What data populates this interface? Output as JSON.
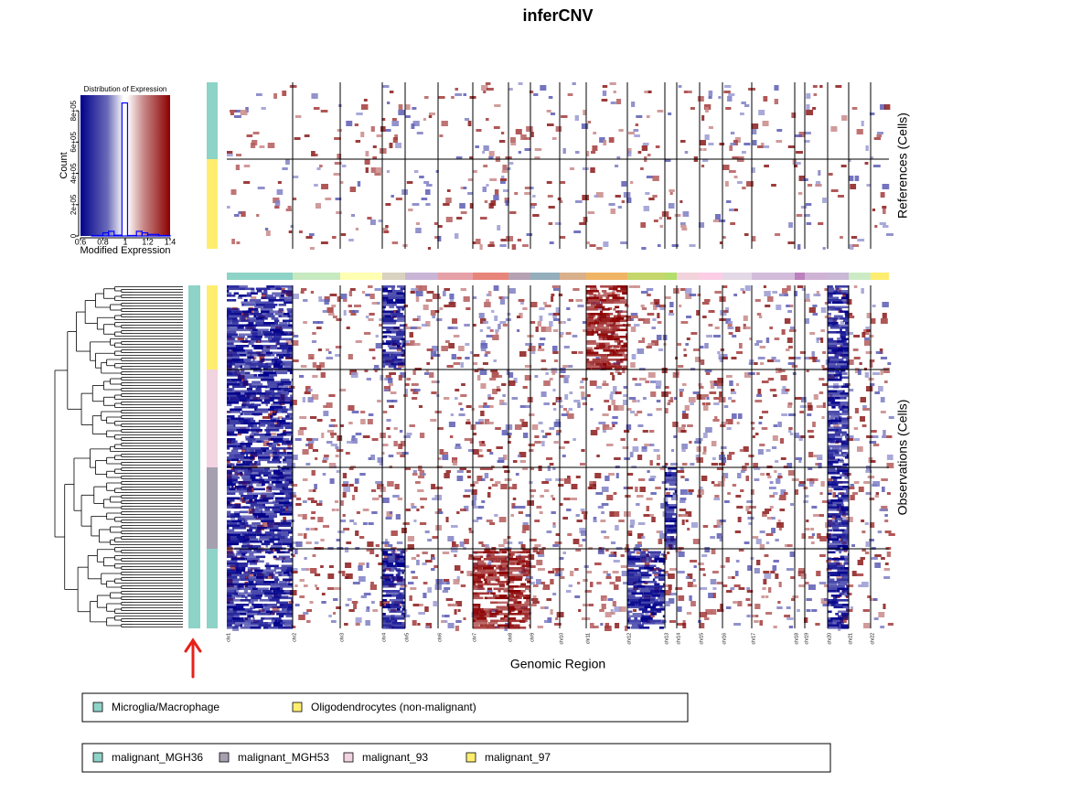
{
  "chart_data": {
    "type": "heatmap",
    "title": "inferCNV",
    "x_label": "Genomic Region",
    "references_label": "References (Cells)",
    "observations_label": "Observations (Cells)",
    "chromosomes": [
      {
        "name": "chr1",
        "color": "#8dd3c7"
      },
      {
        "name": "chr2",
        "color": "#c7e9c0"
      },
      {
        "name": "chr3",
        "color": "#ffffb3"
      },
      {
        "name": "chr4",
        "color": "#d9d2c0"
      },
      {
        "name": "chr5",
        "color": "#c9b5d6"
      },
      {
        "name": "chr6",
        "color": "#e6a0a8"
      },
      {
        "name": "chr7",
        "color": "#e8857a"
      },
      {
        "name": "chr8",
        "color": "#b6a1b3"
      },
      {
        "name": "chr9",
        "color": "#94aebc"
      },
      {
        "name": "chr10",
        "color": "#d9b08c"
      },
      {
        "name": "chr11",
        "color": "#f0b465"
      },
      {
        "name": "chr12",
        "color": "#c5d66b"
      },
      {
        "name": "chr13",
        "color": "#b3de69"
      },
      {
        "name": "chr14",
        "color": "#f2d3dc"
      },
      {
        "name": "chr15",
        "color": "#fccde5"
      },
      {
        "name": "chr16",
        "color": "#e2d8e6"
      },
      {
        "name": "chr17",
        "color": "#d3bcdb"
      },
      {
        "name": "chr18",
        "color": "#bc80bd"
      },
      {
        "name": "chr19",
        "color": "#cfb3d4"
      },
      {
        "name": "chr20",
        "color": "#c9b8d6"
      },
      {
        "name": "chr21",
        "color": "#ccebc5"
      },
      {
        "name": "chr22",
        "color": "#ffed6f"
      }
    ],
    "references": [
      {
        "name": "Microglia/Macrophage",
        "color": "#8dd3c7"
      },
      {
        "name": "Oligodendrocytes (non-malignant)",
        "color": "#ffed6f"
      }
    ],
    "observations": [
      {
        "name": "malignant_MGH36",
        "color": "#8dd3c7",
        "loss": [
          "chr1",
          "chr4",
          "chr12",
          "chr20"
        ],
        "gain": [
          "chr7",
          "chr8"
        ]
      },
      {
        "name": "malignant_MGH53",
        "color": "#a69fb0",
        "loss": [
          "chr1",
          "chr13",
          "chr20"
        ],
        "gain": []
      },
      {
        "name": "malignant_93",
        "color": "#f2d3e0",
        "loss": [
          "chr1",
          "chr20"
        ],
        "gain": []
      },
      {
        "name": "malignant_97",
        "color": "#ffed6f",
        "loss": [
          "chr1",
          "chr4",
          "chr20"
        ],
        "gain": [
          "chr11"
        ]
      }
    ],
    "color_key": {
      "type": "histogram",
      "title": "Distribution of Expression",
      "x_label": "Modified Expression",
      "y_label": "Count",
      "bins": [
        0.6,
        0.7,
        0.8,
        0.85,
        0.9,
        0.97,
        1.02,
        1.1,
        1.15,
        1.2,
        1.3,
        1.4
      ],
      "counts": [
        0,
        3000,
        20000,
        30000,
        5000,
        850000,
        3000,
        30000,
        20000,
        10000,
        3000
      ],
      "color": "#0000ff",
      "xlim": [
        0.6,
        1.4
      ],
      "ylim": [
        0,
        900000
      ],
      "xticks": [
        0.6,
        0.8,
        1,
        1.2,
        1.4
      ],
      "yticks": [
        0,
        {
          "value": 200000,
          "label": "2e+05"
        },
        {
          "value": 400000,
          "label": "4e+05"
        },
        {
          "value": 600000,
          "label": "6e+05"
        },
        {
          "value": 800000,
          "label": "8e+05"
        }
      ]
    }
  }
}
